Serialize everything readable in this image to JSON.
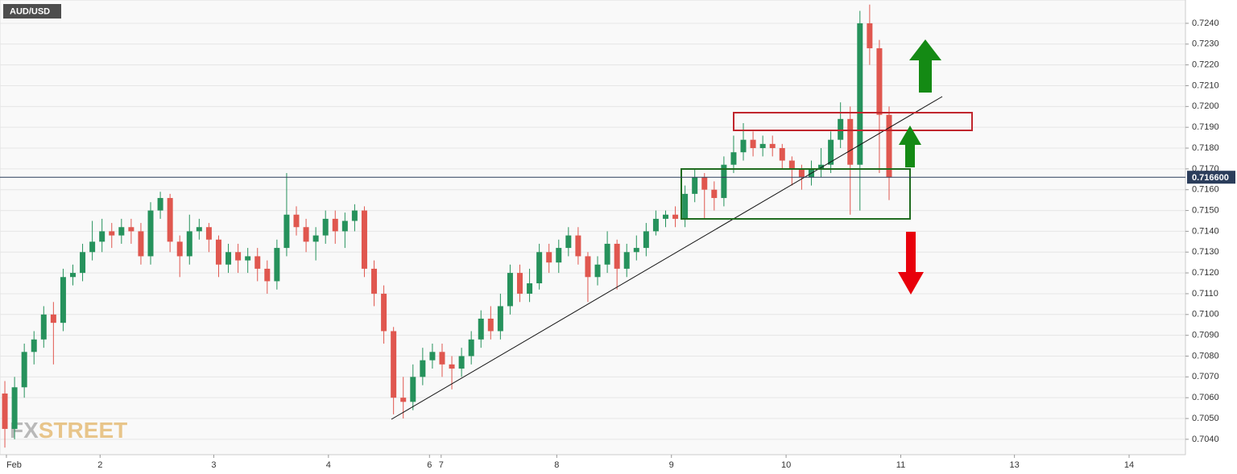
{
  "chart_data": {
    "type": "candlestick",
    "title": "AUD/USD",
    "watermark": [
      "FX",
      "STREET"
    ],
    "up_color": "#26925c",
    "down_color": "#e0574f",
    "grid": true,
    "last_price": {
      "value": 0.7166,
      "label": "0.716600"
    },
    "xlim": [
      0,
      122
    ],
    "xticks": [
      {
        "value": 0.66,
        "label": "Feb"
      },
      {
        "value": 10.3,
        "label": "2"
      },
      {
        "value": 22.0,
        "label": "3"
      },
      {
        "value": 33.8,
        "label": "4"
      },
      {
        "value": 44.2,
        "label": "6"
      },
      {
        "value": 45.4,
        "label": "7"
      },
      {
        "value": 57.3,
        "label": "8"
      },
      {
        "value": 69.1,
        "label": "9"
      },
      {
        "value": 80.9,
        "label": "10"
      },
      {
        "value": 92.7,
        "label": "11"
      },
      {
        "value": 104.4,
        "label": "13"
      },
      {
        "value": 116.2,
        "label": "14"
      }
    ],
    "ylim": [
      0.70326,
      0.72512
    ],
    "yticks": [
      {
        "value": 0.704,
        "label": "0.7040"
      },
      {
        "value": 0.705,
        "label": "0.7050"
      },
      {
        "value": 0.706,
        "label": "0.7060"
      },
      {
        "value": 0.707,
        "label": "0.7070"
      },
      {
        "value": 0.708,
        "label": "0.7080"
      },
      {
        "value": 0.709,
        "label": "0.7090"
      },
      {
        "value": 0.71,
        "label": "0.7100"
      },
      {
        "value": 0.711,
        "label": "0.7110"
      },
      {
        "value": 0.712,
        "label": "0.7120"
      },
      {
        "value": 0.713,
        "label": "0.7130"
      },
      {
        "value": 0.714,
        "label": "0.7140"
      },
      {
        "value": 0.715,
        "label": "0.7150"
      },
      {
        "value": 0.716,
        "label": "0.7160"
      },
      {
        "value": 0.717,
        "label": "0.7170"
      },
      {
        "value": 0.718,
        "label": "0.7180"
      },
      {
        "value": 0.719,
        "label": "0.7190"
      },
      {
        "value": 0.72,
        "label": "0.7200"
      },
      {
        "value": 0.721,
        "label": "0.7210"
      },
      {
        "value": 0.722,
        "label": "0.7220"
      },
      {
        "value": 0.723,
        "label": "0.7230"
      },
      {
        "value": 0.724,
        "label": "0.7240"
      }
    ],
    "open": [
      0.7062,
      0.7045,
      0.7065,
      0.7082,
      0.7088,
      0.71,
      0.7096,
      0.7118,
      0.712,
      0.713,
      0.7135,
      0.714,
      0.7138,
      0.7142,
      0.714,
      0.7128,
      0.715,
      0.7156,
      0.7135,
      0.7128,
      0.714,
      0.7142,
      0.7136,
      0.7124,
      0.713,
      0.7126,
      0.7128,
      0.7122,
      0.7116,
      0.7132,
      0.7148,
      0.7142,
      0.7135,
      0.7138,
      0.7146,
      0.714,
      0.7145,
      0.715,
      0.7122,
      0.711,
      0.7092,
      0.706,
      0.7058,
      0.707,
      0.7078,
      0.7082,
      0.7076,
      0.7074,
      0.708,
      0.7088,
      0.7098,
      0.7092,
      0.7104,
      0.712,
      0.711,
      0.7115,
      0.713,
      0.7125,
      0.7132,
      0.7138,
      0.7128,
      0.7118,
      0.7124,
      0.7134,
      0.7122,
      0.713,
      0.7132,
      0.714,
      0.7146,
      0.7148,
      0.7146,
      0.7158,
      0.7166,
      0.716,
      0.7156,
      0.7172,
      0.7178,
      0.7184,
      0.718,
      0.7182,
      0.718,
      0.7174,
      0.717,
      0.7166,
      0.717,
      0.7172,
      0.7184,
      0.7194,
      0.7172,
      0.724,
      0.7228,
      0.7196
    ],
    "high": [
      0.7068,
      0.707,
      0.7086,
      0.7092,
      0.7104,
      0.7106,
      0.7122,
      0.7124,
      0.7134,
      0.7145,
      0.7146,
      0.7144,
      0.7146,
      0.7146,
      0.7144,
      0.7154,
      0.7159,
      0.7158,
      0.7138,
      0.7148,
      0.7146,
      0.7144,
      0.7138,
      0.7134,
      0.7134,
      0.7132,
      0.7132,
      0.7126,
      0.7136,
      0.7168,
      0.7152,
      0.7146,
      0.7142,
      0.715,
      0.715,
      0.7149,
      0.7153,
      0.7152,
      0.7126,
      0.7114,
      0.7094,
      0.707,
      0.7076,
      0.7084,
      0.7086,
      0.7086,
      0.708,
      0.7084,
      0.7092,
      0.7102,
      0.7104,
      0.711,
      0.7124,
      0.7124,
      0.7122,
      0.7134,
      0.7134,
      0.7136,
      0.7142,
      0.7142,
      0.713,
      0.7128,
      0.714,
      0.7136,
      0.7134,
      0.7138,
      0.7144,
      0.715,
      0.715,
      0.7152,
      0.7162,
      0.717,
      0.7168,
      0.7164,
      0.7176,
      0.7186,
      0.7192,
      0.7188,
      0.7186,
      0.7186,
      0.7182,
      0.7176,
      0.7172,
      0.7174,
      0.718,
      0.7188,
      0.7202,
      0.72,
      0.7246,
      0.7249,
      0.7232,
      0.72
    ],
    "low": [
      0.7036,
      0.704,
      0.706,
      0.7076,
      0.7084,
      0.7076,
      0.7092,
      0.7114,
      0.7116,
      0.7126,
      0.713,
      0.7132,
      0.7134,
      0.7134,
      0.7124,
      0.7124,
      0.7146,
      0.713,
      0.7118,
      0.7124,
      0.7136,
      0.713,
      0.7118,
      0.712,
      0.712,
      0.712,
      0.7116,
      0.711,
      0.7112,
      0.7128,
      0.7138,
      0.713,
      0.7126,
      0.7134,
      0.7134,
      0.7132,
      0.714,
      0.7118,
      0.7104,
      0.7086,
      0.7052,
      0.705,
      0.7054,
      0.7066,
      0.7074,
      0.707,
      0.7064,
      0.707,
      0.7076,
      0.7084,
      0.7088,
      0.7088,
      0.71,
      0.7106,
      0.7106,
      0.7112,
      0.712,
      0.712,
      0.7128,
      0.7124,
      0.7106,
      0.7114,
      0.712,
      0.7112,
      0.7118,
      0.7126,
      0.7128,
      0.7138,
      0.7142,
      0.7142,
      0.7142,
      0.7154,
      0.7146,
      0.715,
      0.7152,
      0.7168,
      0.7174,
      0.7176,
      0.7176,
      0.7176,
      0.717,
      0.7162,
      0.716,
      0.7162,
      0.7166,
      0.7168,
      0.718,
      0.7148,
      0.715,
      0.722,
      0.7168,
      0.7155
    ],
    "close": [
      0.7045,
      0.7065,
      0.7082,
      0.7088,
      0.71,
      0.7096,
      0.7118,
      0.712,
      0.713,
      0.7135,
      0.714,
      0.7138,
      0.7142,
      0.714,
      0.7128,
      0.715,
      0.7156,
      0.7135,
      0.7128,
      0.714,
      0.7142,
      0.7136,
      0.7124,
      0.713,
      0.7126,
      0.7128,
      0.7122,
      0.7116,
      0.7132,
      0.7148,
      0.7142,
      0.7135,
      0.7138,
      0.7146,
      0.714,
      0.7145,
      0.715,
      0.7122,
      0.711,
      0.7092,
      0.706,
      0.7058,
      0.707,
      0.7078,
      0.7082,
      0.7076,
      0.7074,
      0.708,
      0.7088,
      0.7098,
      0.7092,
      0.7104,
      0.712,
      0.711,
      0.7115,
      0.713,
      0.7125,
      0.7132,
      0.7138,
      0.7128,
      0.7118,
      0.7124,
      0.7134,
      0.7122,
      0.713,
      0.7132,
      0.714,
      0.7146,
      0.7148,
      0.7146,
      0.7158,
      0.7166,
      0.716,
      0.7156,
      0.7172,
      0.7178,
      0.7184,
      0.718,
      0.7182,
      0.718,
      0.7174,
      0.717,
      0.7166,
      0.717,
      0.7172,
      0.7184,
      0.7194,
      0.7172,
      0.724,
      0.7228,
      0.7196,
      0.7166
    ]
  }
}
